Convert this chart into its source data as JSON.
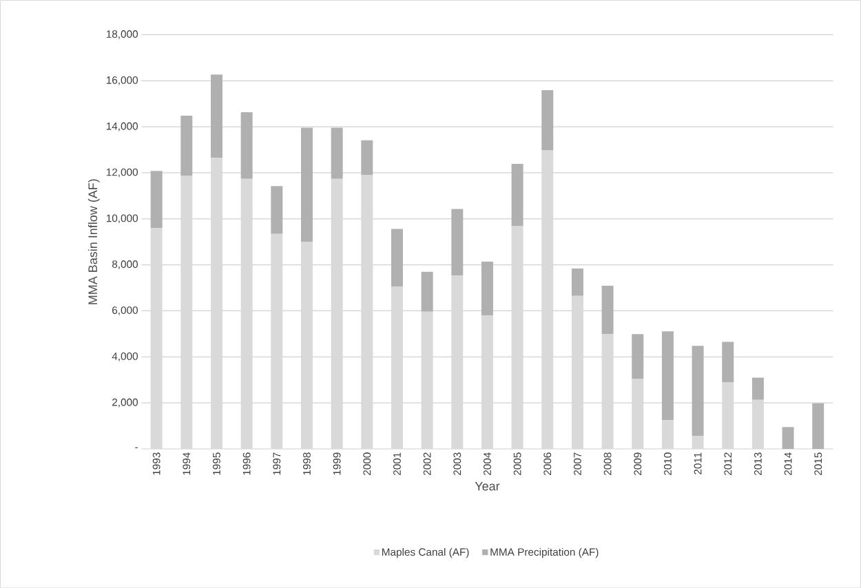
{
  "chart_data": {
    "type": "bar",
    "stacked": true,
    "xlabel": "Year",
    "ylabel": "MMA Basin Inflow (AF)",
    "categories": [
      "1993",
      "1994",
      "1995",
      "1996",
      "1997",
      "1998",
      "1999",
      "2000",
      "2001",
      "2002",
      "2003",
      "2004",
      "2005",
      "2006",
      "2007",
      "2008",
      "2009",
      "2010",
      "2011",
      "2012",
      "2013",
      "2014",
      "2015"
    ],
    "series": [
      {
        "name": "Maples Canal (AF)",
        "color": "#d9d9d9",
        "values": [
          9600,
          11880,
          12650,
          11740,
          9340,
          8990,
          11740,
          11900,
          7060,
          5960,
          7530,
          5800,
          9680,
          12970,
          6650,
          4990,
          3040,
          1250,
          570,
          2900,
          2130,
          0,
          0
        ]
      },
      {
        "name": "MMA Precipitation (AF)",
        "color": "#b0b0b0",
        "values": [
          2480,
          2600,
          3620,
          2890,
          2080,
          4970,
          2220,
          1510,
          2500,
          1740,
          2900,
          2340,
          2710,
          2620,
          1190,
          2100,
          1950,
          3860,
          3910,
          1750,
          970,
          950,
          1980
        ]
      }
    ],
    "ylim": [
      0,
      18000
    ],
    "yticks": [
      {
        "value": 0,
        "label": "-"
      },
      {
        "value": 2000,
        "label": "2,000"
      },
      {
        "value": 4000,
        "label": "4,000"
      },
      {
        "value": 6000,
        "label": "6,000"
      },
      {
        "value": 8000,
        "label": "8,000"
      },
      {
        "value": 10000,
        "label": "10,000"
      },
      {
        "value": 12000,
        "label": "12,000"
      },
      {
        "value": 14000,
        "label": "14,000"
      },
      {
        "value": 16000,
        "label": "16,000"
      },
      {
        "value": 18000,
        "label": "18,000"
      }
    ],
    "grid": "y",
    "legend": "bottom"
  }
}
